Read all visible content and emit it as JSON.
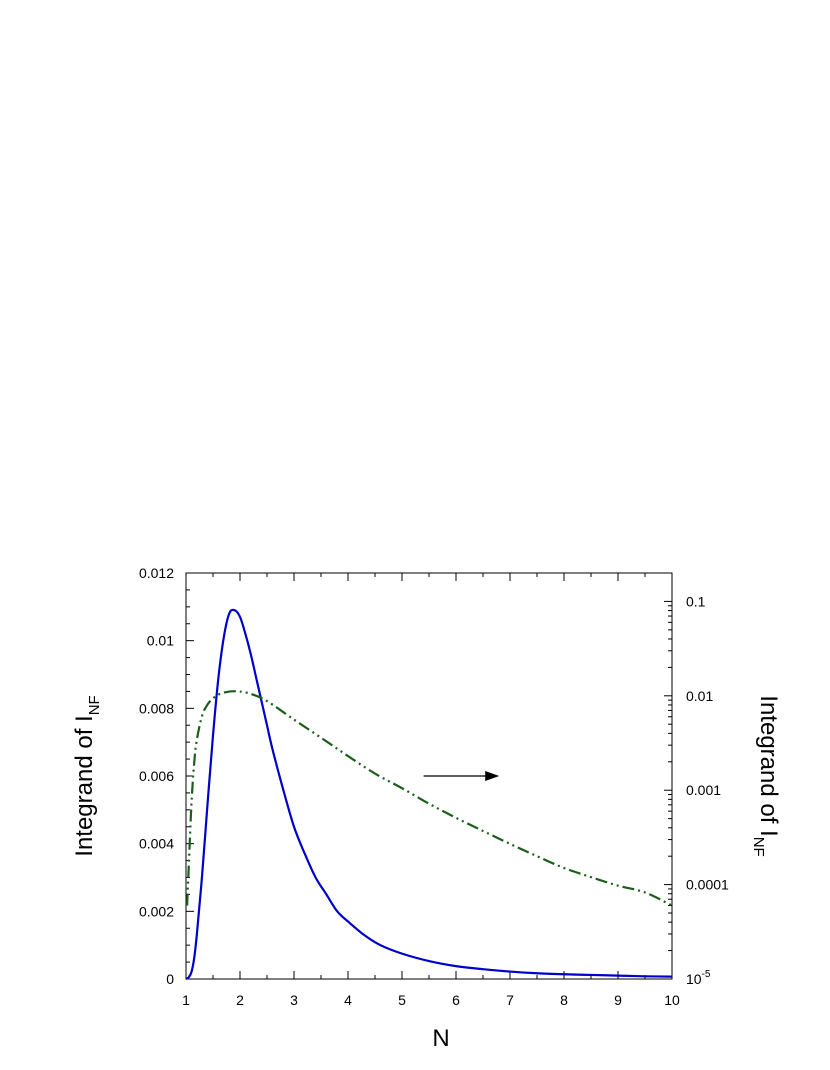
{
  "chart_data": {
    "type": "line",
    "title": "",
    "xlabel": "N",
    "ylabel": {
      "main": "Integrand of I",
      "sub": "NF"
    },
    "y2label": {
      "main": "Integrand of I",
      "sub": "NF"
    },
    "xlim": [
      1,
      10
    ],
    "ylim": [
      0,
      0.012
    ],
    "y2lim": [
      1e-05,
      0.2
    ],
    "y2_scale": "log",
    "grid": false,
    "legend": "none",
    "xticks": [
      "1",
      "2",
      "3",
      "4",
      "5",
      "6",
      "7",
      "8",
      "9",
      "10"
    ],
    "yticks": [
      "0",
      "0.002",
      "0.004",
      "0.006",
      "0.008",
      "0.01",
      "0.012"
    ],
    "y2ticks": [
      {
        "value": 0.1,
        "label": "0.1"
      },
      {
        "value": 0.01,
        "label": "0.01"
      },
      {
        "value": 0.001,
        "label": "0.001"
      },
      {
        "value": 0.0001,
        "label": "0.0001"
      },
      {
        "value": 1e-05,
        "label": "10",
        "exp": "-5"
      }
    ],
    "annotations": [
      {
        "type": "arrow",
        "direction": "right",
        "meaning": "dash-dot curve uses right axis",
        "from": [
          5.4,
          0.006
        ],
        "to": [
          6.8,
          0.006
        ]
      }
    ],
    "series": [
      {
        "axis": "left",
        "color": "#0000cc",
        "style": "solid",
        "x": [
          1.0,
          1.05,
          1.1,
          1.15,
          1.2,
          1.3,
          1.4,
          1.5,
          1.6,
          1.7,
          1.8,
          1.9,
          2.0,
          2.1,
          2.2,
          2.3,
          2.4,
          2.5,
          2.6,
          2.8,
          3.0,
          3.2,
          3.4,
          3.6,
          3.8,
          4.0,
          4.3,
          4.6,
          5.0,
          5.5,
          6.0,
          6.5,
          7.0,
          7.5,
          8.0,
          8.5,
          9.0,
          9.5,
          10.0
        ],
        "values": [
          0.0,
          5e-05,
          0.0002,
          0.0006,
          0.0013,
          0.0031,
          0.0052,
          0.0072,
          0.0089,
          0.0101,
          0.0108,
          0.0109,
          0.0107,
          0.0102,
          0.0096,
          0.0089,
          0.0082,
          0.0075,
          0.0068,
          0.0056,
          0.0045,
          0.0037,
          0.003,
          0.0025,
          0.002,
          0.0017,
          0.0013,
          0.001,
          0.00075,
          0.00053,
          0.00038,
          0.00029,
          0.00022,
          0.00017,
          0.00014,
          0.00012,
          0.0001,
          8e-05,
          7e-05
        ]
      },
      {
        "axis": "right",
        "color": "#1a5e1a",
        "style": "dash-dot-dot",
        "x": [
          1.02,
          1.05,
          1.1,
          1.15,
          1.2,
          1.3,
          1.4,
          1.5,
          1.6,
          1.7,
          1.8,
          1.9,
          2.0,
          2.2,
          2.5,
          3.0,
          3.5,
          4.0,
          4.5,
          5.0,
          5.5,
          6.0,
          6.5,
          7.0,
          7.5,
          8.0,
          8.5,
          9.0,
          9.5,
          10.0
        ],
        "values": [
          6e-05,
          0.00015,
          0.0007,
          0.0019,
          0.0034,
          0.0062,
          0.0081,
          0.0094,
          0.0103,
          0.0108,
          0.0111,
          0.0112,
          0.0111,
          0.0105,
          0.0088,
          0.0056,
          0.0036,
          0.0023,
          0.0015,
          0.00105,
          0.00072,
          0.00051,
          0.00037,
          0.00027,
          0.0002,
          0.00015,
          0.00012,
          9.75e-05,
          8.26e-05,
          6e-05
        ]
      }
    ]
  }
}
